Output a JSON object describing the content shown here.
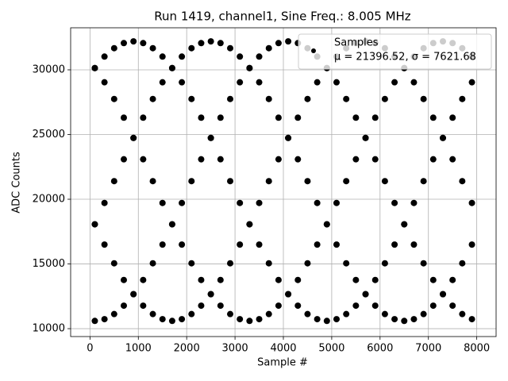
{
  "chart_data": {
    "type": "scatter",
    "title": "Run 1419, channel1, Sine Freq.: 8.005 MHz",
    "x_label": "Sample #",
    "y_label": "ADC Counts",
    "annotation": "μ = 21396.52, σ = 7621.68",
    "xlim": [
      -400,
      8400
    ],
    "ylim": [
      9390,
      33250
    ],
    "xticks": [
      0,
      1000,
      2000,
      3000,
      4000,
      5000,
      6000,
      7000,
      8000
    ],
    "yticks": [
      10000,
      15000,
      20000,
      25000,
      30000
    ],
    "grid": true,
    "legend": "upper right",
    "series": [
      {
        "name": "Samples",
        "color": "#000000",
        "x": [
          100,
          300,
          500,
          700,
          900,
          1100,
          1300,
          1500,
          1700,
          1900,
          2100,
          2300,
          2500,
          2700,
          2900,
          3100,
          3300,
          3500,
          3700,
          3900,
          4100,
          4300,
          4500,
          4700,
          4900,
          5100,
          5300,
          5500,
          5700,
          5900,
          6100,
          6300,
          6500,
          6700,
          6900,
          7100,
          7300,
          7500,
          7700,
          7900,
          100,
          300,
          500,
          700,
          900,
          1100,
          1300,
          1500,
          1700,
          1900,
          2100,
          2300,
          2500,
          2700,
          2900,
          3100,
          3300,
          3500,
          3700,
          3900,
          4100,
          4300,
          4500,
          4700,
          4900,
          5100,
          5300,
          5500,
          5700,
          5900,
          6100,
          6300,
          6500,
          6700,
          6900,
          7100,
          7300,
          7500,
          7700,
          7900,
          100,
          300,
          500,
          700,
          900,
          1100,
          1300,
          1500,
          1700,
          1900,
          2100,
          2300,
          2500,
          2700,
          2900,
          3100,
          3300,
          3500,
          3700,
          3900,
          4100,
          4300,
          4500,
          4700,
          4900,
          5100,
          5300,
          5500,
          5700,
          5900,
          6100,
          6300,
          6500,
          6700,
          6900,
          7100,
          7300,
          7500,
          7700,
          7900,
          100,
          300,
          500,
          700,
          900,
          1100,
          1300,
          1500,
          1700,
          1900,
          2100,
          2300,
          2500,
          2700,
          2900,
          3100,
          3300,
          3500,
          3700,
          3900,
          4100,
          4300,
          4500,
          4700,
          4900,
          5100,
          5300,
          5500,
          5700,
          5900,
          6100,
          6300,
          6500,
          6700,
          6900,
          7100,
          7300,
          7500,
          7700,
          7900,
          100,
          300,
          500,
          700,
          900,
          1100,
          1300,
          1500,
          1700,
          1900,
          2100,
          2300,
          2500,
          2700,
          2900,
          3100,
          3300,
          3500,
          3700,
          3900,
          4100,
          4300,
          4500,
          4700,
          4900,
          5100,
          5300,
          5500,
          5700,
          5900,
          6100,
          6300,
          6500,
          6700,
          6900,
          7100,
          7300,
          7500,
          7700,
          7900
        ],
        "values": [
          30137,
          31023,
          31672,
          32067,
          32200,
          32067,
          31672,
          31023,
          30137,
          29037,
          27748,
          26303,
          24737,
          23089,
          21400,
          19711,
          18063,
          16497,
          15052,
          13763,
          12663,
          11777,
          11128,
          10733,
          10600,
          10733,
          11128,
          11777,
          12663,
          13763,
          15052,
          16497,
          18063,
          19711,
          21400,
          23089,
          24737,
          26303,
          27748,
          29037,
          18063,
          19711,
          21400,
          23089,
          24737,
          26303,
          27748,
          29037,
          30137,
          31023,
          31672,
          32067,
          32200,
          32067,
          31672,
          31023,
          30137,
          29037,
          27748,
          26303,
          24737,
          23089,
          21400,
          19711,
          18063,
          16497,
          15052,
          13763,
          12663,
          11777,
          11128,
          10733,
          10600,
          10733,
          11128,
          11777,
          12663,
          13763,
          15052,
          16497,
          10600,
          10733,
          11128,
          11777,
          12663,
          13763,
          15052,
          16497,
          18063,
          19711,
          21400,
          23089,
          24737,
          26303,
          27748,
          29037,
          30137,
          31023,
          31672,
          32067,
          32200,
          32067,
          31672,
          31023,
          30137,
          29037,
          27748,
          26303,
          24737,
          23089,
          21400,
          19711,
          18063,
          16497,
          15052,
          13763,
          12663,
          11777,
          11128,
          10733,
          18063,
          16497,
          15052,
          13763,
          12663,
          11777,
          11128,
          10733,
          10600,
          10733,
          11128,
          11777,
          12663,
          13763,
          15052,
          16497,
          18063,
          19711,
          21400,
          23089,
          24737,
          26303,
          27748,
          29037,
          30137,
          31023,
          31672,
          32067,
          32200,
          32067,
          31672,
          31023,
          30137,
          29037,
          27748,
          26303,
          24737,
          23089,
          21400,
          19711,
          30137,
          29037,
          27748,
          26303,
          24737,
          23089,
          21400,
          19711,
          18063,
          16497,
          15052,
          13763,
          12663,
          11777,
          11128,
          10733,
          10600,
          10733,
          11128,
          11777,
          12663,
          13763,
          15052,
          16497,
          18063,
          19711,
          21400,
          23089,
          24737,
          26303,
          27748,
          29037,
          30137,
          31023,
          31672,
          32067,
          32200,
          32067,
          31672,
          31023
        ]
      }
    ]
  }
}
